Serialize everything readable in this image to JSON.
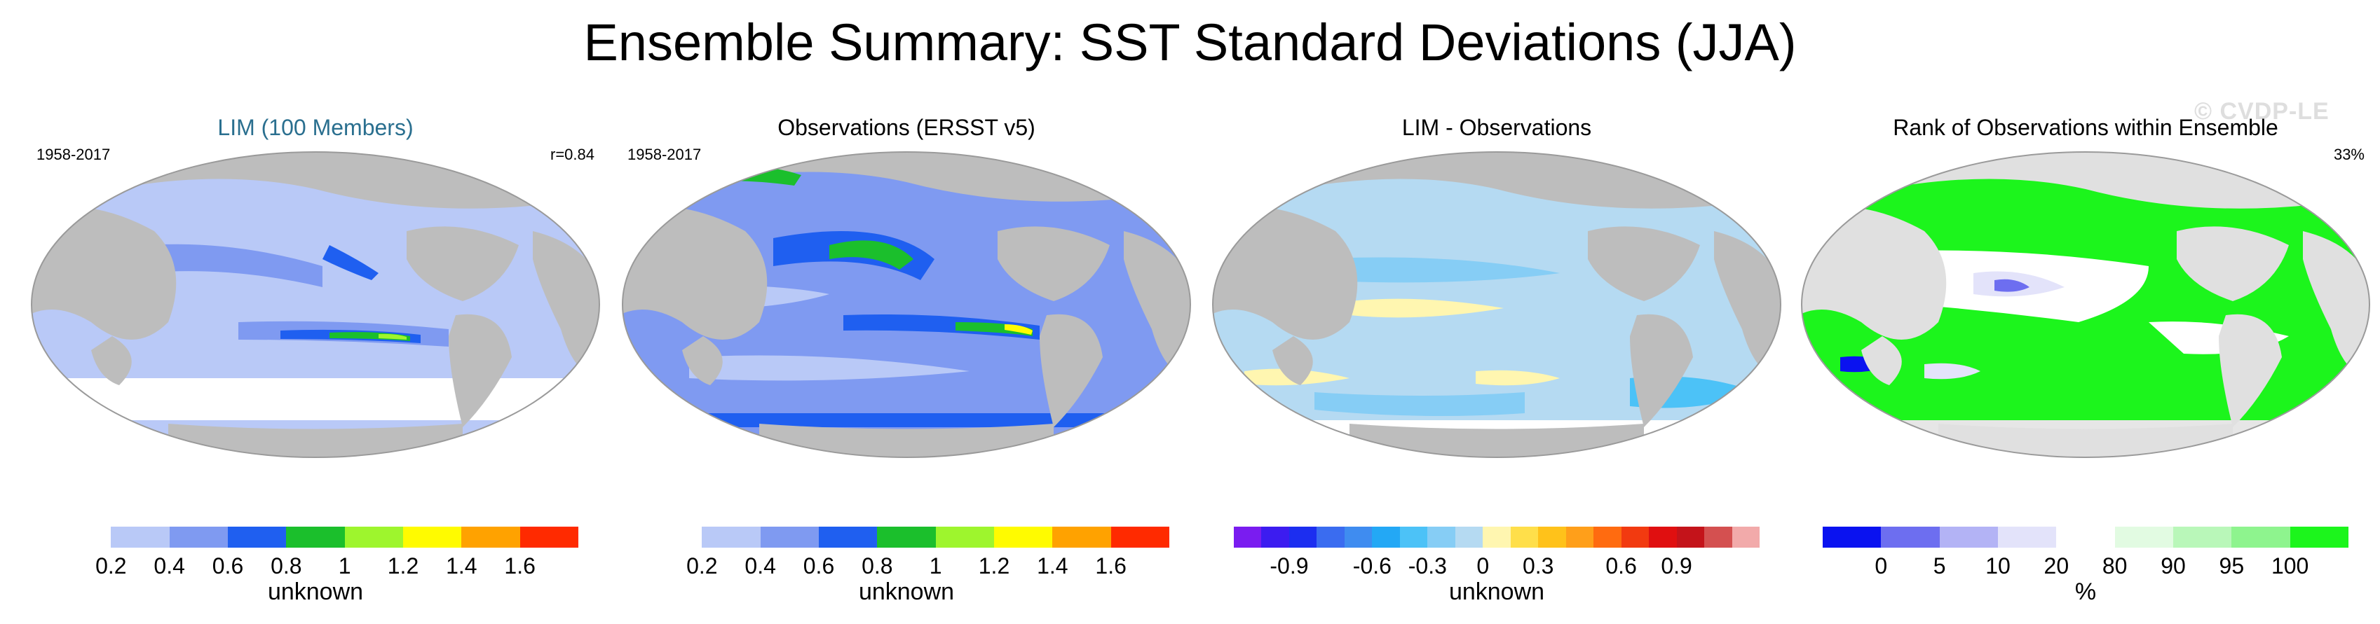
{
  "title": "Ensemble Summary: SST Standard Deviations (JJA)",
  "watermark": "© CVDP-LE",
  "colors": {
    "land": "#bdbdbd",
    "ocean_outline": "#9a9a9a",
    "lim_title": "#2a6f8f"
  },
  "panels": [
    {
      "title": "LIM (100 Members)",
      "left_label": "1958-2017",
      "right_label": "r=0.84",
      "colorbar": {
        "colors": [
          "#ffffff",
          "#b9c9f7",
          "#7f9af1",
          "#1f5ff0",
          "#1bbf2c",
          "#9ef52d",
          "#fffb00",
          "#ffa200",
          "#ff2a00"
        ],
        "ticks": [
          "0.2",
          "0.4",
          "0.6",
          "0.8",
          "1",
          "1.2",
          "1.4",
          "1.6"
        ],
        "unit": "unknown"
      }
    },
    {
      "title": "Observations (ERSST v5)",
      "left_label": "1958-2017",
      "right_label": "",
      "colorbar": {
        "colors": [
          "#ffffff",
          "#b9c9f7",
          "#7f9af1",
          "#1f5ff0",
          "#1bbf2c",
          "#9ef52d",
          "#fffb00",
          "#ffa200",
          "#ff2a00"
        ],
        "ticks": [
          "0.2",
          "0.4",
          "0.6",
          "0.8",
          "1",
          "1.2",
          "1.4",
          "1.6"
        ],
        "unit": "unknown"
      }
    },
    {
      "title": "LIM - Observations",
      "left_label": "",
      "right_label": "",
      "colorbar": {
        "colors": [
          "#7a1cf0",
          "#3c1cf0",
          "#1c2ef0",
          "#3a6cf0",
          "#3f8cf0",
          "#23a8f5",
          "#4cc2f7",
          "#86cdf5",
          "#b5daf2",
          "#fff6b0",
          "#ffdf4a",
          "#ffc21a",
          "#ff9f1a",
          "#ff6b10",
          "#f23a10",
          "#e00f10",
          "#c4131a",
          "#d45050",
          "#f2aaaa"
        ],
        "ticks": [
          "-0.9",
          "-0.6",
          "-0.3",
          "0",
          "0.3",
          "0.6",
          "0.9"
        ],
        "unit": "unknown"
      }
    },
    {
      "title": "Rank of Observations within Ensemble",
      "left_label": "",
      "right_label": "33%",
      "colorbar": {
        "colors": [
          "#0a12f0",
          "#6d6ef0",
          "#b3b3f5",
          "#e3e3fa",
          "#ffffff",
          "#e2fbe2",
          "#b9f7b9",
          "#8ef48e",
          "#1cf51c"
        ],
        "ticks": [
          "0",
          "5",
          "10",
          "20",
          "80",
          "90",
          "95",
          "100"
        ],
        "unit": "%"
      }
    }
  ]
}
